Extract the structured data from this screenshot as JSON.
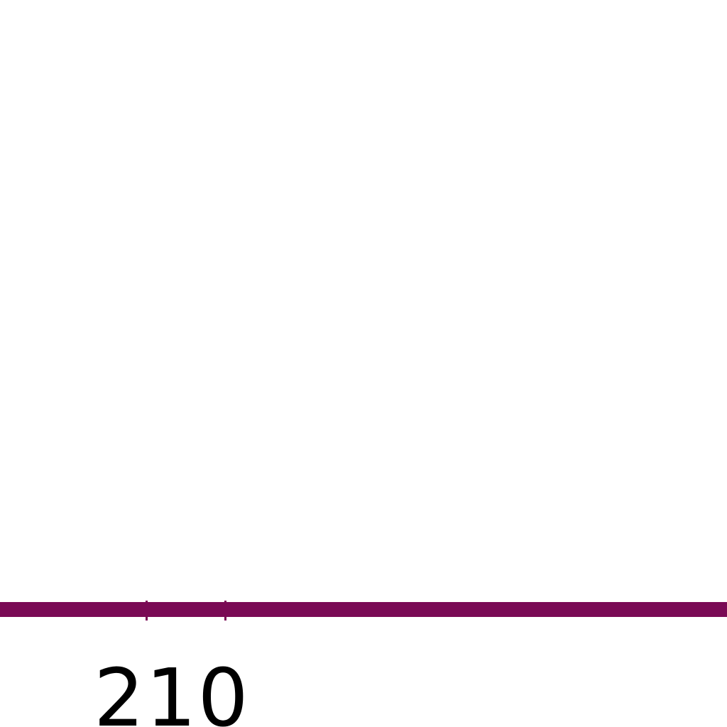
{
  "label": "210"
}
